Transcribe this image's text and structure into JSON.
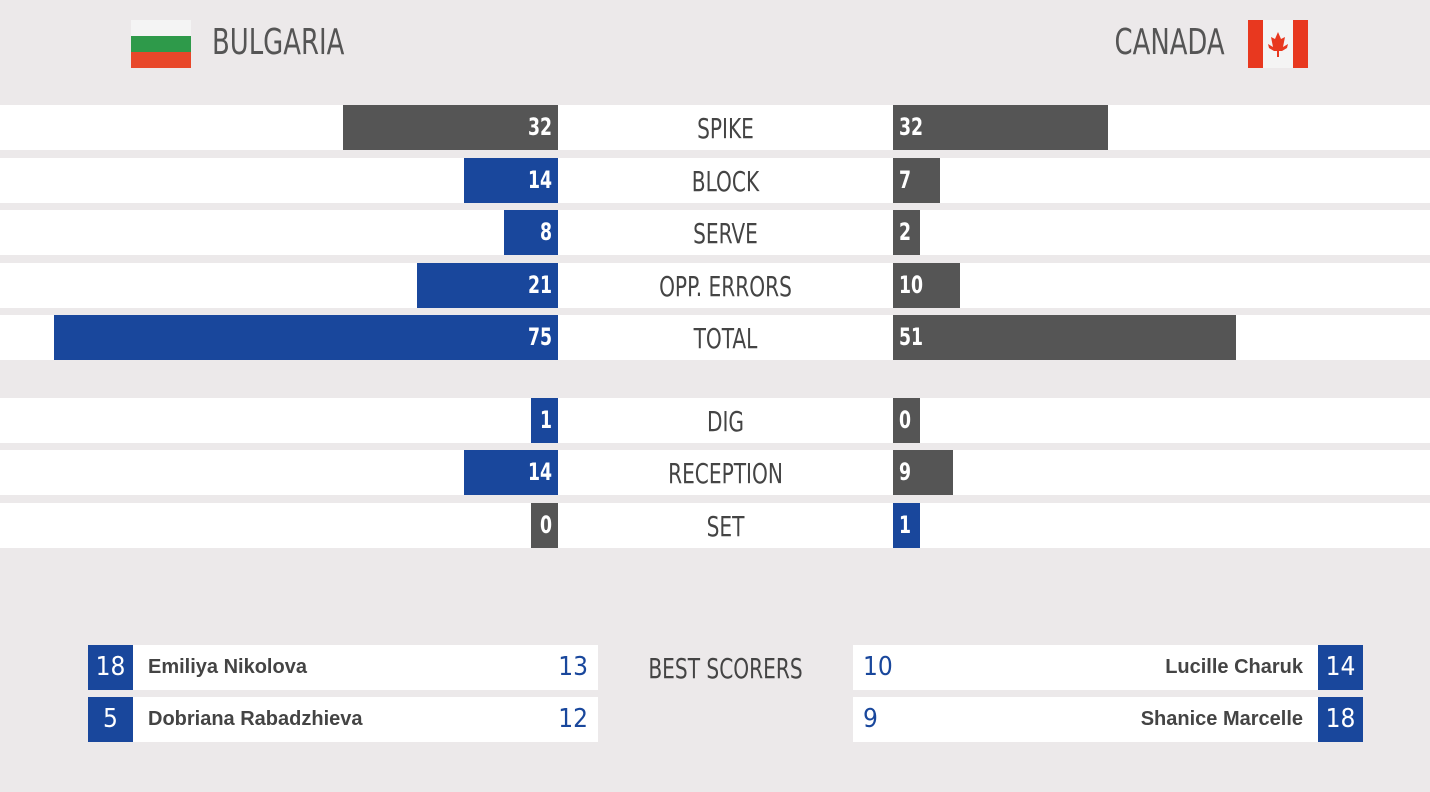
{
  "teams": {
    "home": {
      "name": "BULGARIA"
    },
    "away": {
      "name": "CANADA"
    }
  },
  "stat_groups": [
    [
      {
        "label": "SPIKE",
        "home": 32,
        "away": 32
      },
      {
        "label": "BLOCK",
        "home": 14,
        "away": 7
      },
      {
        "label": "SERVE",
        "home": 8,
        "away": 2
      },
      {
        "label": "OPP. ERRORS",
        "home": 21,
        "away": 10
      },
      {
        "label": "TOTAL",
        "home": 75,
        "away": 51
      }
    ],
    [
      {
        "label": "DIG",
        "home": 1,
        "away": 0
      },
      {
        "label": "RECEPTION",
        "home": 14,
        "away": 9
      },
      {
        "label": "SET",
        "home": 0,
        "away": 1
      }
    ]
  ],
  "best_scorers": {
    "title": "BEST SCORERS",
    "home": [
      {
        "number": 18,
        "name": "Emiliya Nikolova",
        "points": 13
      },
      {
        "number": 5,
        "name": "Dobriana Rabadzhieva",
        "points": 12
      }
    ],
    "away": [
      {
        "number": 14,
        "name": "Lucille Charuk",
        "points": 10
      },
      {
        "number": 18,
        "name": "Shanice Marcelle",
        "points": 9
      }
    ]
  }
}
